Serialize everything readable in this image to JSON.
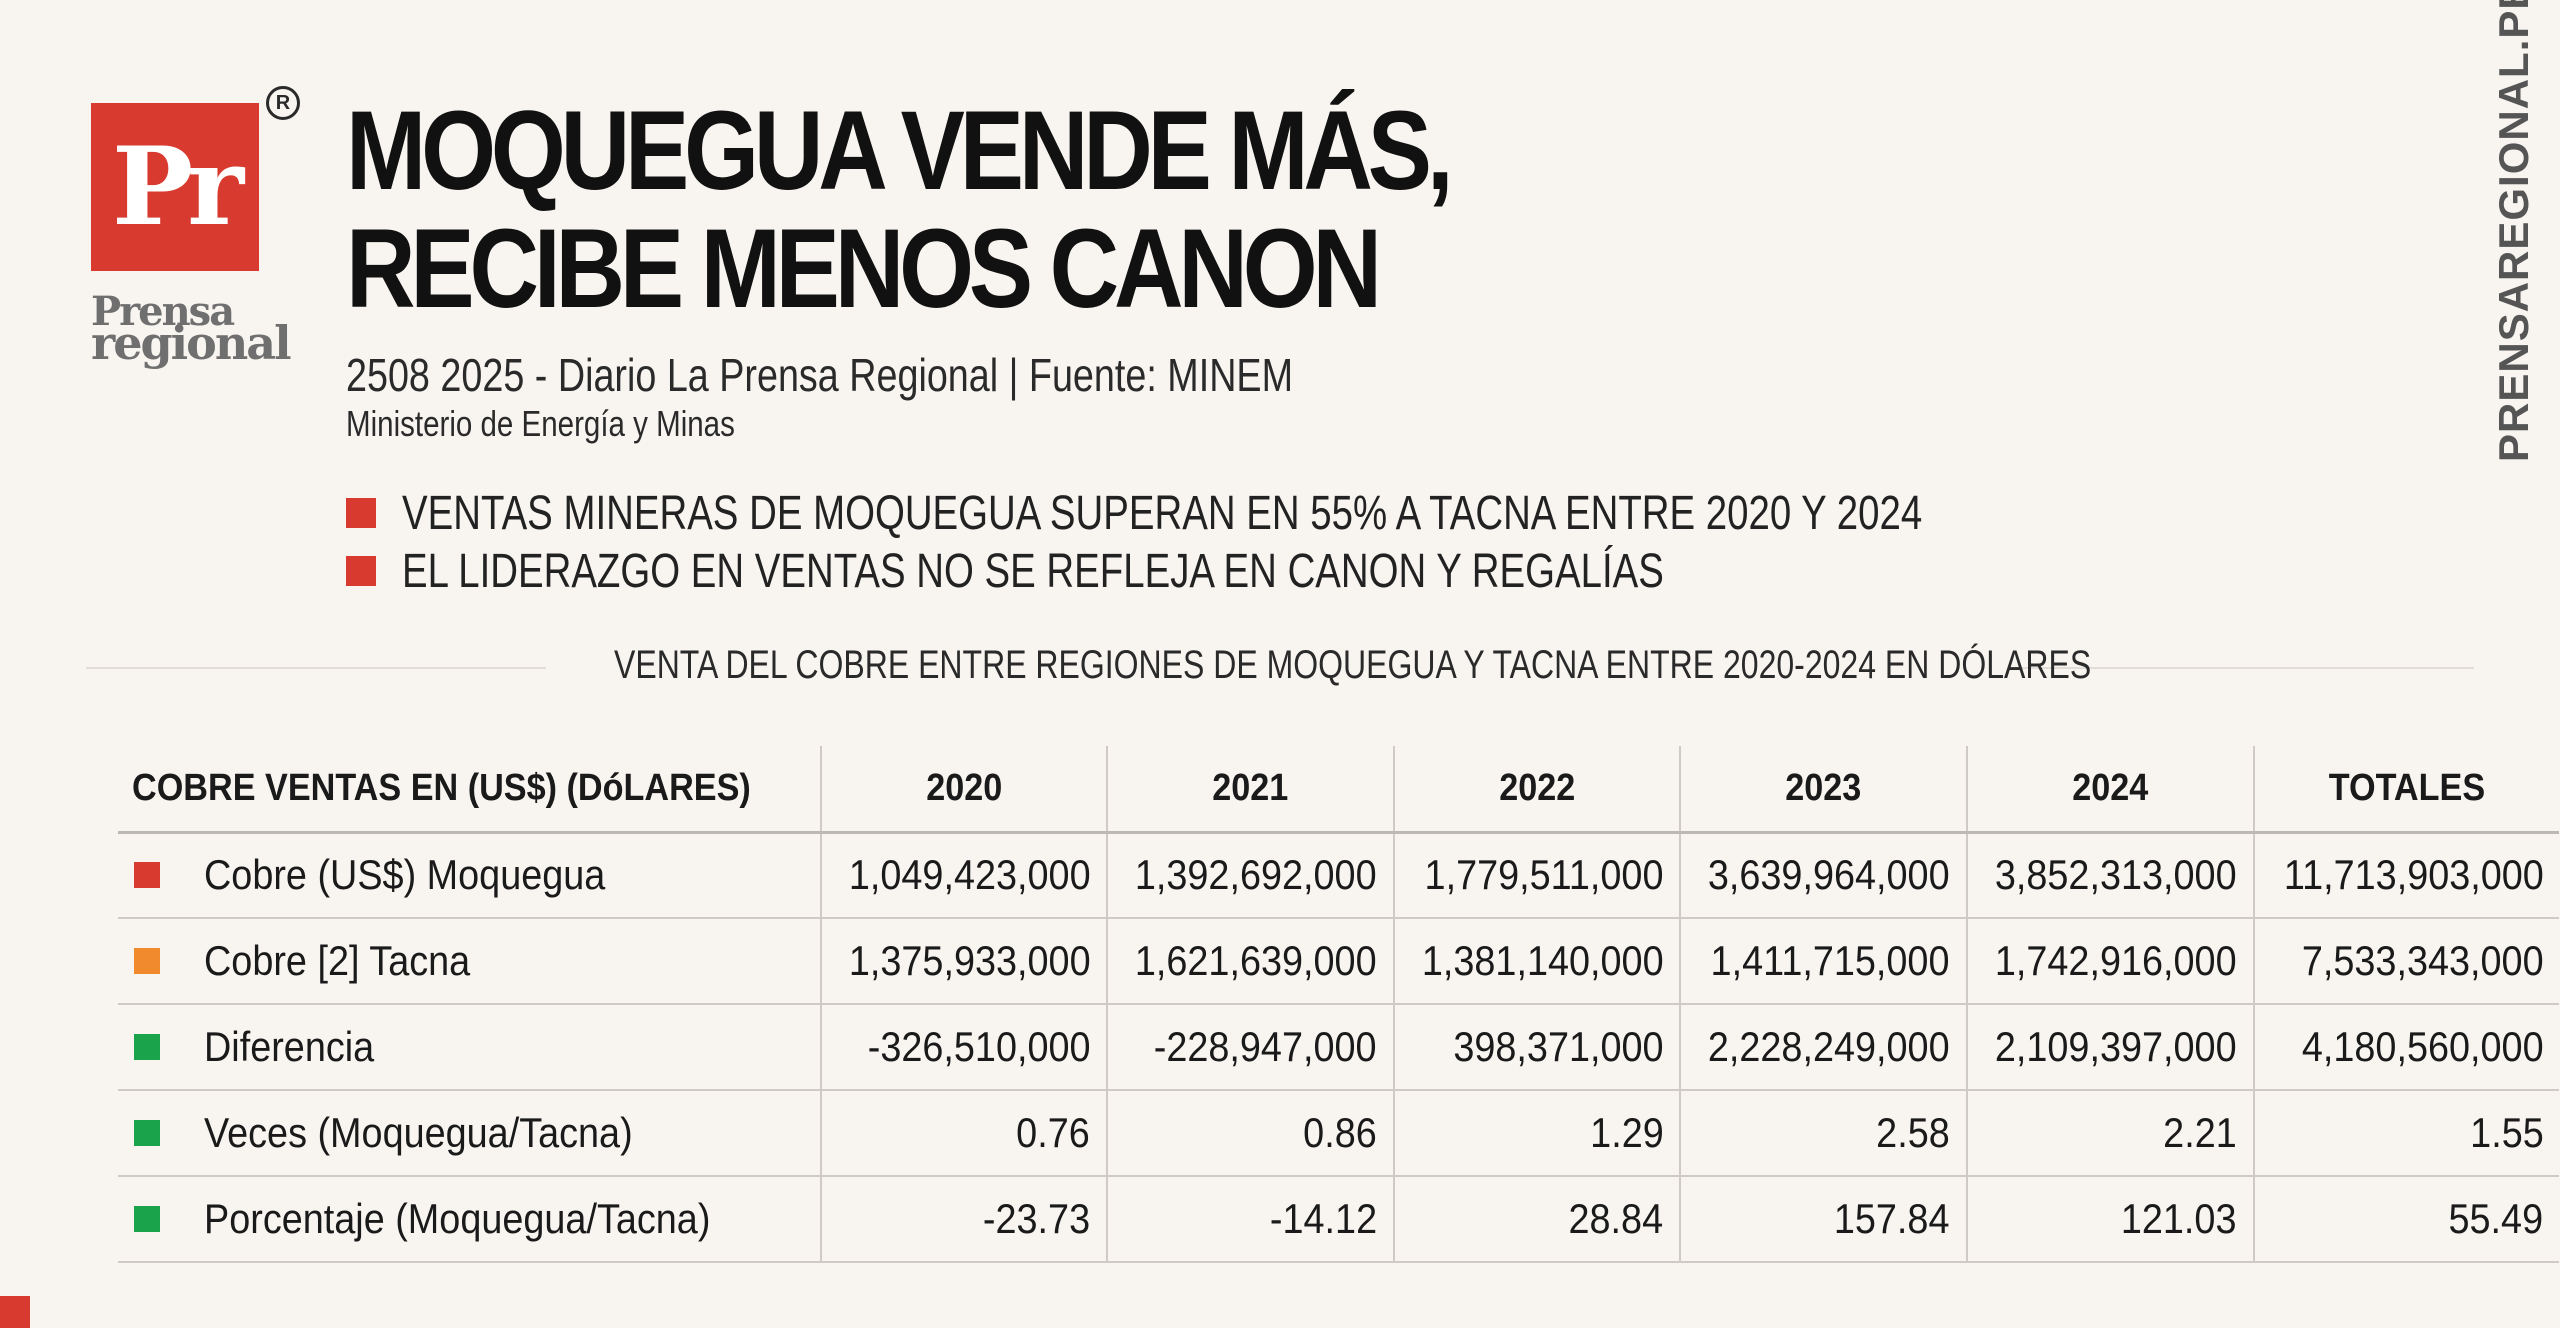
{
  "logo": {
    "letters": "Pr",
    "registered": "R",
    "word1": "Prensa",
    "word2": "regional"
  },
  "headline": {
    "line1": "MOQUEGUA VENDE MÁS,",
    "line2": "RECIBE MENOS CANON"
  },
  "source": {
    "line": "2508 2025 - Diario La Prensa Regional | Fuente: MINEM",
    "subline": "Ministerio de Energía y Minas"
  },
  "bullets": [
    "VENTAS MINERAS DE MOQUEGUA SUPERAN EN 55% A TACNA ENTRE 2020 Y 2024",
    "EL LIDERAZGO EN VENTAS NO SE REFLEJA EN CANON Y REGALÍAS"
  ],
  "side_text": "PRENSAREGIONAL.PE",
  "section_title": "VENTA DEL COBRE ENTRE REGIONES DE MOQUEGUA Y TACNA ENTRE 2020-2024 EN DÓLARES",
  "table": {
    "headers": [
      "COBRE VENTAS EN (US$) (DóLARES)",
      "2020",
      "2021",
      "2022",
      "2023",
      "2024",
      "TOTALES"
    ],
    "rows": [
      {
        "label": "Cobre (US$) Moquegua",
        "color": "#d93a30",
        "values": [
          "1,049,423,000",
          "1,392,692,000",
          "1,779,511,000",
          "3,639,964,000",
          "3,852,313,000",
          "11,713,903,000"
        ]
      },
      {
        "label": "Cobre [2] Tacna",
        "color": "#f08a2c",
        "values": [
          "1,375,933,000",
          "1,621,639,000",
          "1,381,140,000",
          "1,411,715,000",
          "1,742,916,000",
          "7,533,343,000"
        ]
      },
      {
        "label": "Diferencia",
        "color": "#1aa34a",
        "values": [
          "-326,510,000",
          "-228,947,000",
          "398,371,000",
          "2,228,249,000",
          "2,109,397,000",
          "4,180,560,000"
        ]
      },
      {
        "label": "Veces (Moquegua/Tacna)",
        "color": "#1aa34a",
        "values": [
          "0.76",
          "0.86",
          "1.29",
          "2.58",
          "2.21",
          "1.55"
        ]
      },
      {
        "label": "Porcentaje (Moquegua/Tacna)",
        "color": "#1aa34a",
        "values": [
          "-23.73",
          "-14.12",
          "28.84",
          "157.84",
          "121.03",
          "55.49"
        ]
      }
    ]
  },
  "colors": {
    "accent": "#d93a30",
    "moquegua": "#d93a30",
    "tacna": "#f08a2c",
    "derived": "#1aa34a"
  }
}
